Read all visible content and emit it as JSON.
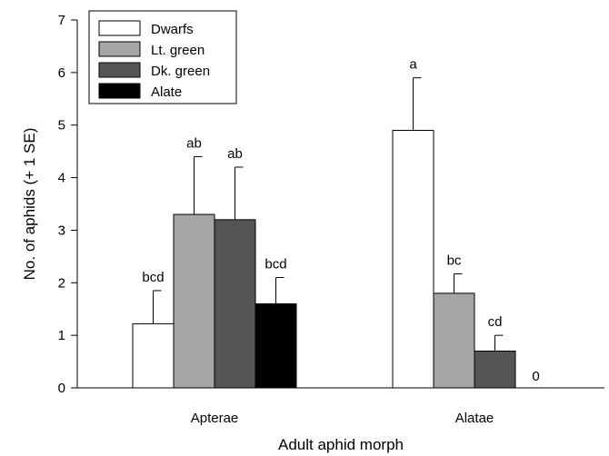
{
  "chart_data": {
    "type": "bar",
    "title": "",
    "xlabel": "Adult aphid morph",
    "ylabel": "No. of aphids (+ 1 SE)",
    "ylim": [
      0,
      7
    ],
    "yticks": [
      "0",
      "1",
      "2",
      "3",
      "4",
      "5",
      "6",
      "7"
    ],
    "categories": [
      "Apterae",
      "Alatae"
    ],
    "series": [
      {
        "name": "Dwarfs",
        "color": "#ffffff",
        "values": [
          1.22,
          4.9
        ],
        "errors": [
          0.63,
          1.0
        ],
        "labels": [
          "bcd",
          "a"
        ]
      },
      {
        "name": "Lt. green",
        "color": "#a6a6a6",
        "values": [
          3.3,
          1.8
        ],
        "errors": [
          1.1,
          0.37
        ],
        "labels": [
          "ab",
          "bc"
        ]
      },
      {
        "name": "Dk. green",
        "color": "#555555",
        "values": [
          3.2,
          0.7
        ],
        "errors": [
          1.0,
          0.3
        ],
        "labels": [
          "ab",
          "cd"
        ]
      },
      {
        "name": "Alate",
        "color": "#000000",
        "values": [
          1.6,
          0
        ],
        "errors": [
          0.5,
          0
        ],
        "labels": [
          "bcd",
          "0"
        ]
      }
    ],
    "grid": false,
    "legend_position": "top-left"
  }
}
